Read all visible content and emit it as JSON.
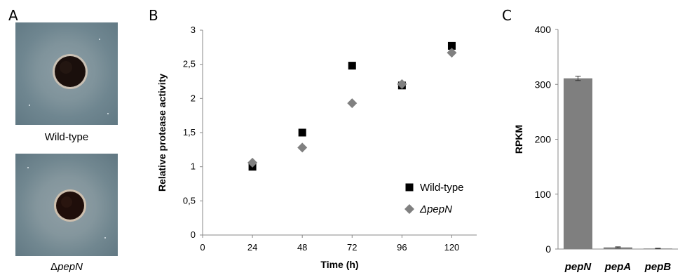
{
  "panels": {
    "a": {
      "letter": "A",
      "plates": [
        {
          "label": "Wild-type"
        },
        {
          "label_prefix": "Δ",
          "label_gene": "pepN"
        }
      ]
    },
    "b": {
      "letter": "B"
    },
    "c": {
      "letter": "C"
    }
  },
  "chart_data": [
    {
      "type": "scatter",
      "xlabel": "Time (h)",
      "ylabel": "Relative protease activity",
      "x_ticks": [
        "0",
        "24",
        "48",
        "72",
        "96",
        "120"
      ],
      "y_ticks": [
        "0",
        "0,5",
        "1",
        "1,5",
        "2",
        "2,5",
        "3"
      ],
      "xlim": [
        0,
        132
      ],
      "ylim": [
        0,
        3
      ],
      "legend_position": "bottom-right",
      "series": [
        {
          "name": "Wild-type",
          "marker": "square",
          "color": "#000000",
          "x": [
            24,
            48,
            72,
            96,
            120
          ],
          "y": [
            1.0,
            1.5,
            2.48,
            2.19,
            2.77
          ]
        },
        {
          "name": "ΔpepN",
          "marker": "diamond",
          "color": "#808080",
          "x": [
            24,
            48,
            72,
            96,
            120
          ],
          "y": [
            1.06,
            1.28,
            1.93,
            2.21,
            2.67
          ]
        }
      ],
      "grid": false
    },
    {
      "type": "bar",
      "ylabel": "RPKM",
      "categories": [
        "pepN",
        "pepA",
        "pepB"
      ],
      "values": [
        311,
        3,
        1
      ],
      "errors": [
        4,
        1,
        0.5
      ],
      "y_ticks": [
        "0",
        "100",
        "200",
        "300",
        "400"
      ],
      "ylim": [
        0,
        400
      ],
      "bar_color": "#7f7f7f",
      "grid": false
    }
  ]
}
